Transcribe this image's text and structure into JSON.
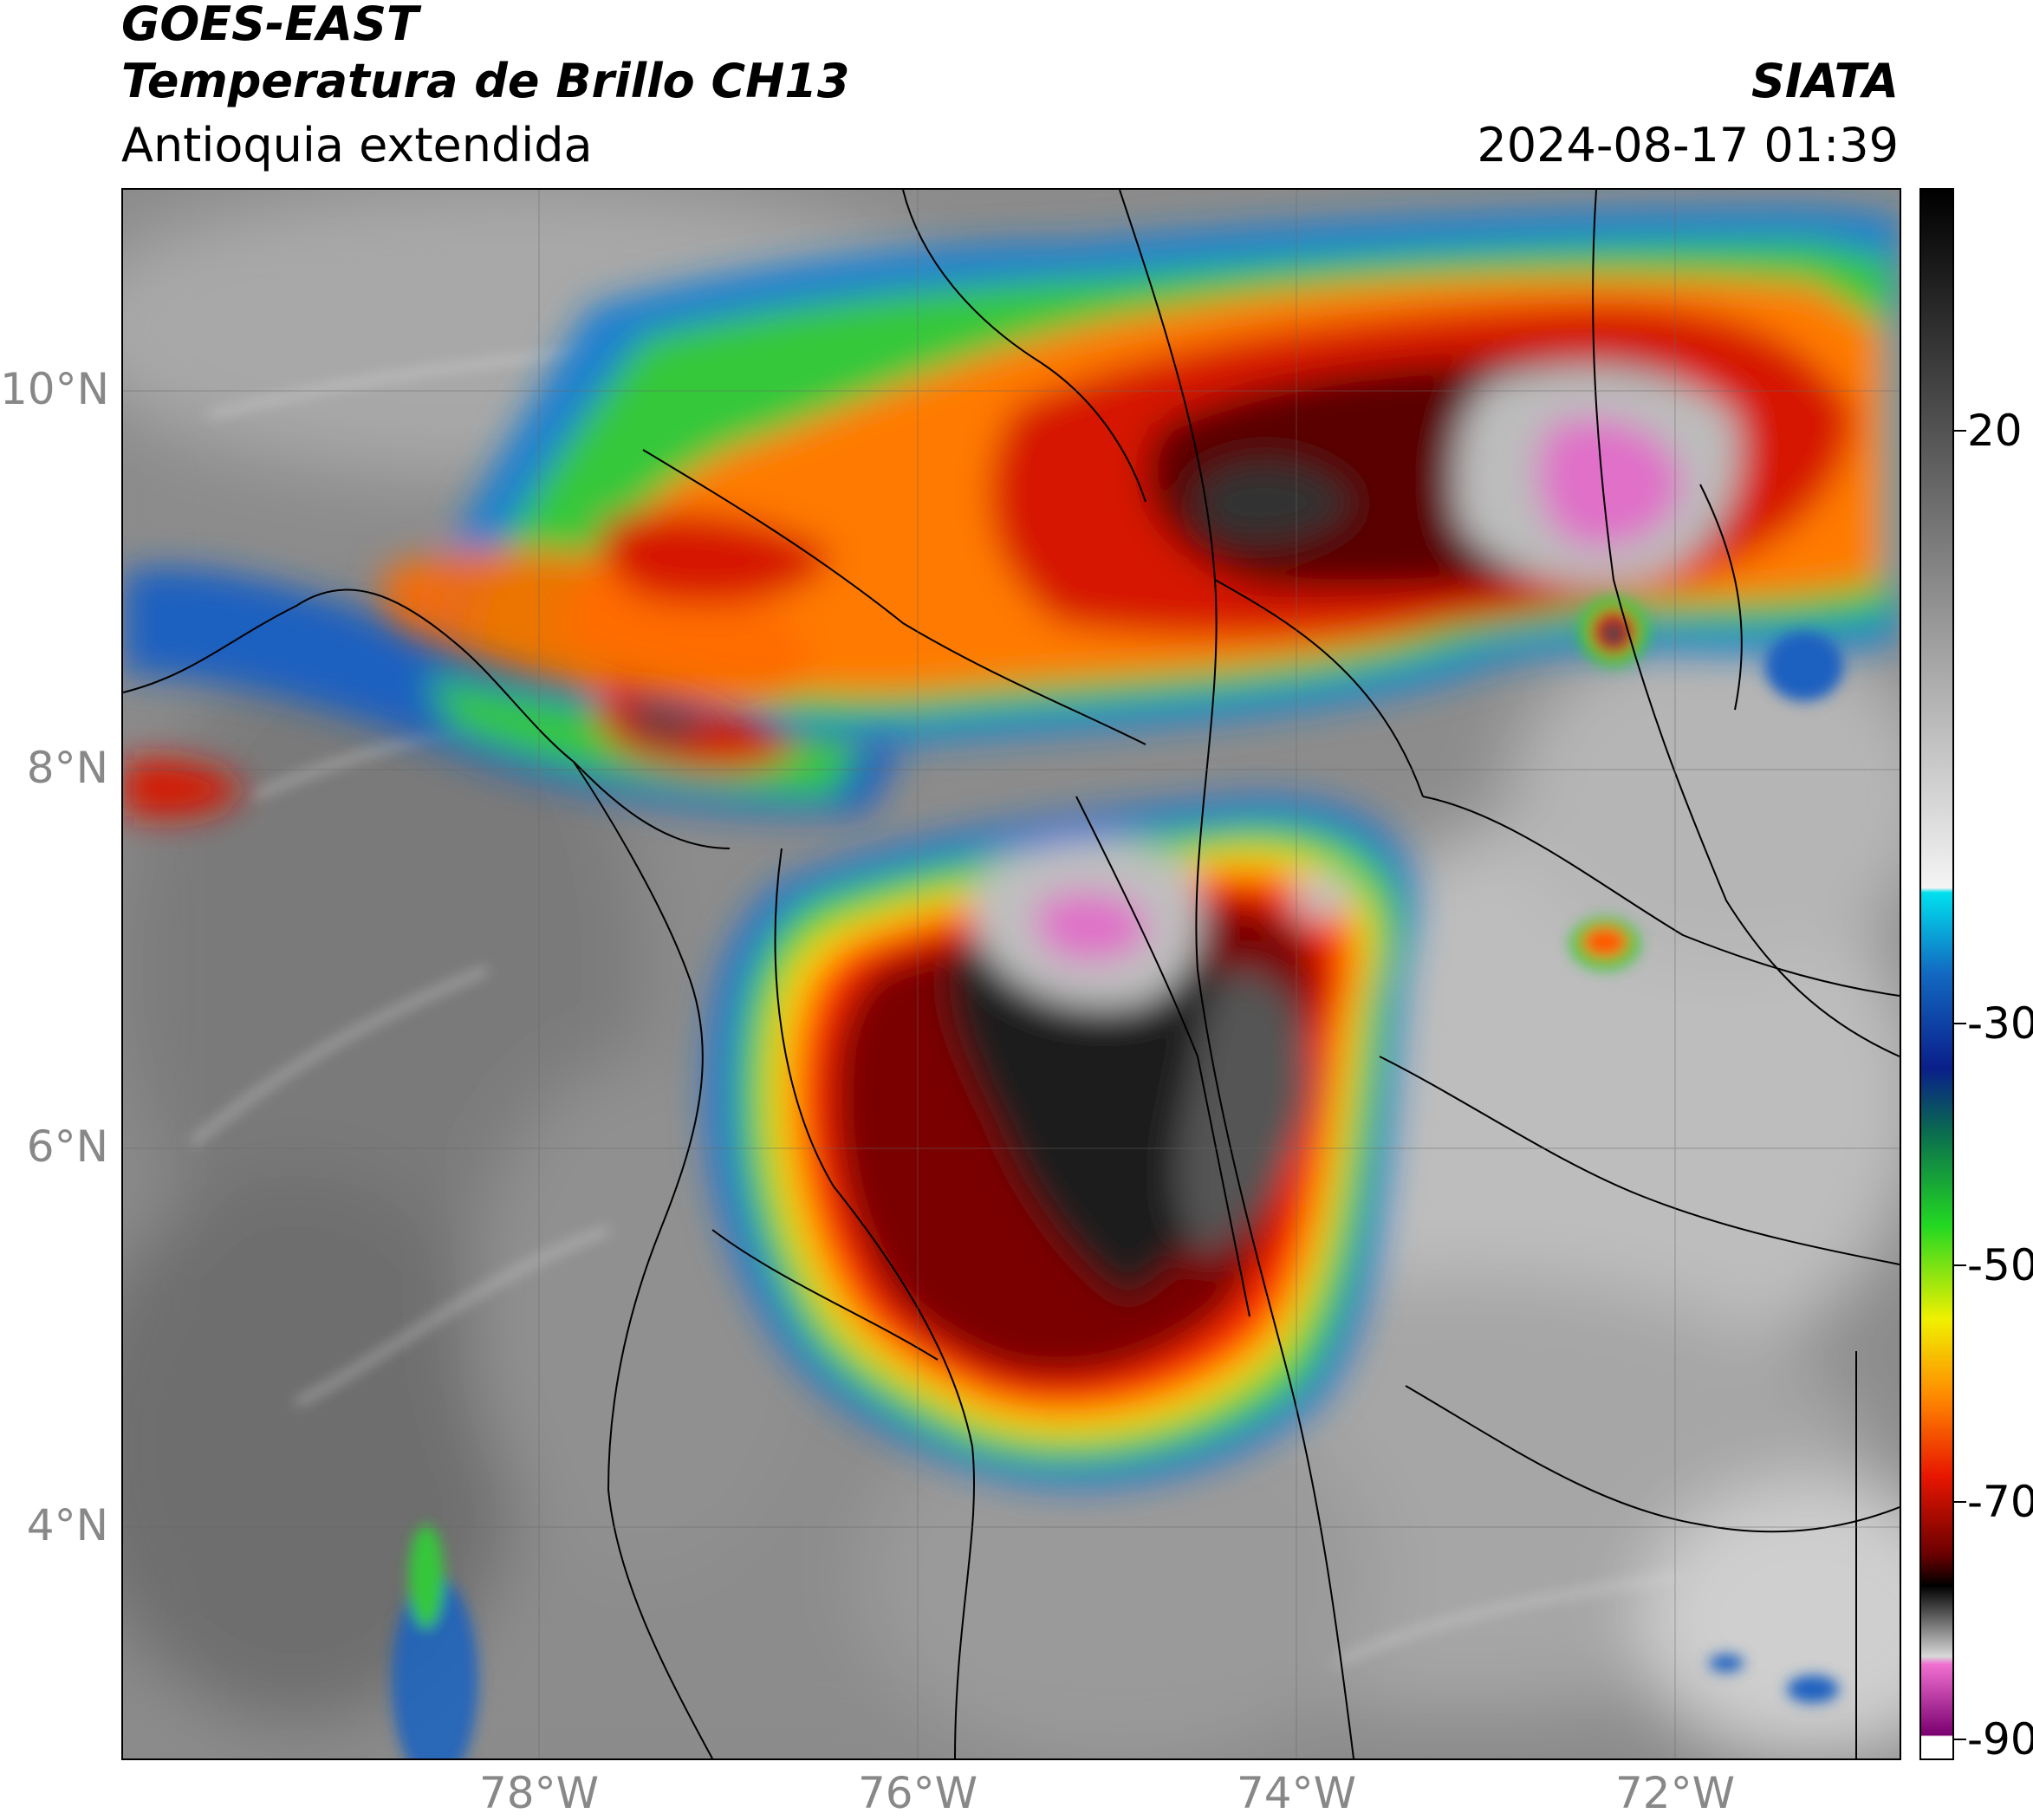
{
  "header": {
    "title_line1": "GOES-EAST",
    "title_line2": "Temperatura de Brillo CH13",
    "subtitle": "Antioquia extendida",
    "organization": "SIATA",
    "datetime": "2024-08-17 01:39"
  },
  "map": {
    "lat_labels": [
      "10°N",
      "8°N",
      "6°N",
      "4°N"
    ],
    "lon_labels": [
      "78°W",
      "76°W",
      "74°W",
      "72°W"
    ],
    "extent": {
      "lon_min": -80,
      "lon_max": -70.6,
      "lat_min": 2.9,
      "lat_max": 11.06
    }
  },
  "colorbar": {
    "ticks": [
      "20",
      "-30",
      "-50",
      "-70",
      "-90"
    ],
    "tick_values": [
      20,
      -30,
      -50,
      -70,
      -90
    ],
    "range": [
      -90,
      28
    ],
    "colors": {
      "warm_gray_top": "#111111",
      "gray_mid": "#d0d0d0",
      "cyan": "#00d8e8",
      "blue": "#0a2a90",
      "green": "#22c222",
      "yellow": "#f5e600",
      "orange": "#ff8c00",
      "red": "#e01800",
      "dark_red": "#5a0000",
      "black": "#000000",
      "pink": "#e060c8",
      "purple": "#8a1080",
      "white_bottom": "#ffffff"
    }
  }
}
